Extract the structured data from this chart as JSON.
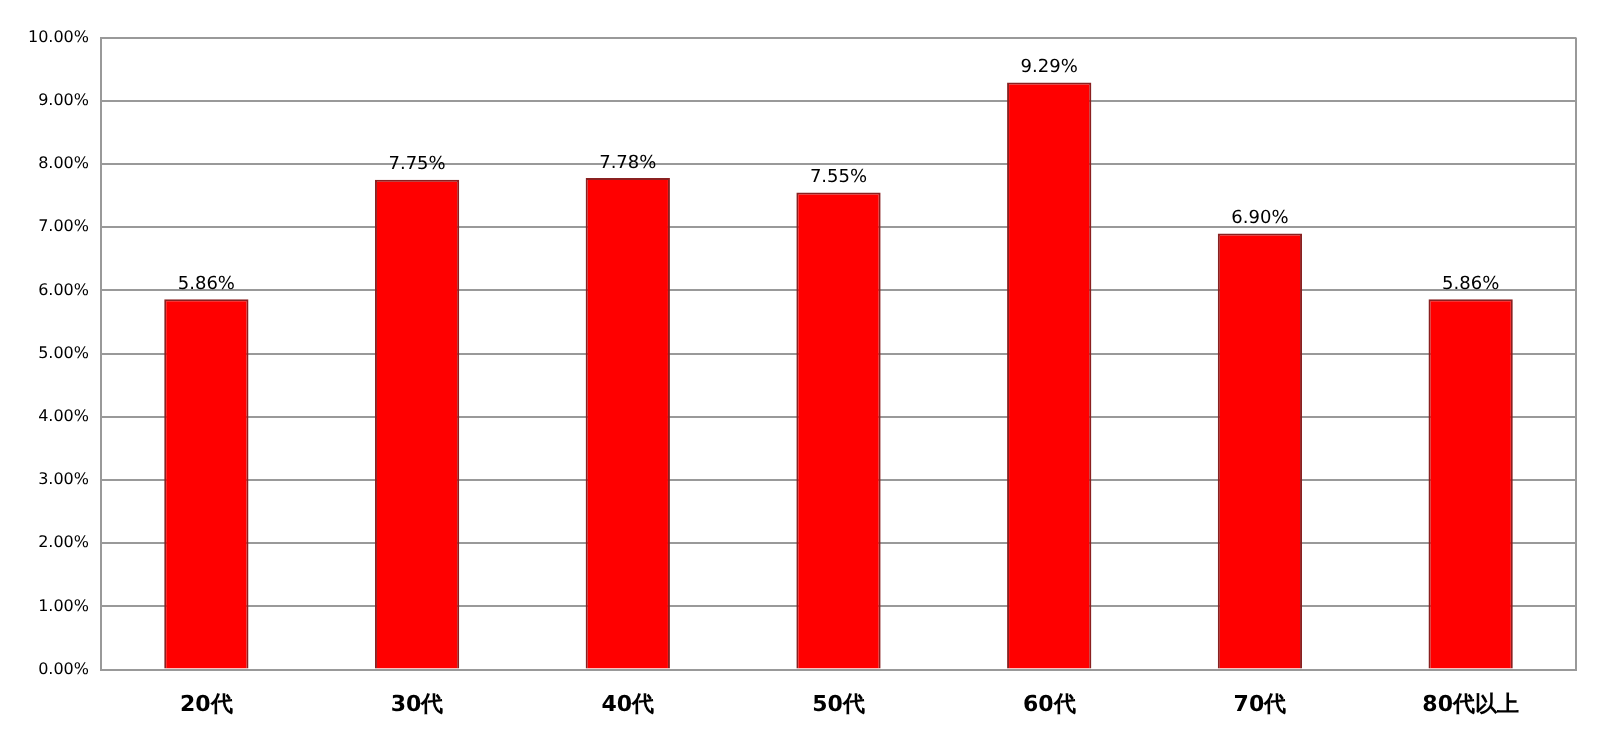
{
  "chart_data": {
    "type": "bar",
    "categories": [
      "20代",
      "30代",
      "40代",
      "50代",
      "60代",
      "70代",
      "80代以上"
    ],
    "values": [
      5.86,
      7.75,
      7.78,
      7.55,
      9.29,
      6.9,
      5.86
    ],
    "value_labels": [
      "5.86%",
      "7.75%",
      "7.78%",
      "7.55%",
      "9.29%",
      "6.90%",
      "5.86%"
    ],
    "color": "#ff0000",
    "ylim": [
      0,
      10
    ],
    "yticks": [
      {
        "value": 0,
        "label": "0.00%"
      },
      {
        "value": 1,
        "label": "1.00%"
      },
      {
        "value": 2,
        "label": "2.00%"
      },
      {
        "value": 3,
        "label": "3.00%"
      },
      {
        "value": 4,
        "label": "4.00%"
      },
      {
        "value": 5,
        "label": "5.00%"
      },
      {
        "value": 6,
        "label": "6.00%"
      },
      {
        "value": 7,
        "label": "7.00%"
      },
      {
        "value": 8,
        "label": "8.00%"
      },
      {
        "value": 9,
        "label": "9.00%"
      },
      {
        "value": 10,
        "label": "10.00%"
      }
    ],
    "grid": "y"
  }
}
